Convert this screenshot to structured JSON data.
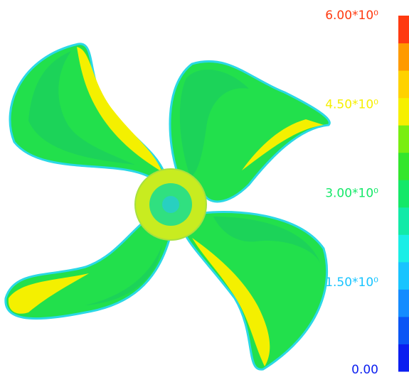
{
  "chart_data": {
    "type": "contour",
    "colorbar": {
      "zlim": [
        0,
        6
      ],
      "ticks": [
        {
          "value": 0,
          "label": "0.00"
        },
        {
          "value": 1.5,
          "label": "1.50*10⁰"
        },
        {
          "value": 3,
          "label": "3.00*10⁰"
        },
        {
          "value": 4.5,
          "label": "4.50*10⁰"
        },
        {
          "value": 6,
          "label": "6.00*10⁰"
        }
      ],
      "colors": [
        "#0b1ef0",
        "#0a55f5",
        "#148cff",
        "#18c4ff",
        "#1aeee6",
        "#12eaa8",
        "#14e868",
        "#34e62c",
        "#7aee10",
        "#f6f000",
        "#ffd200",
        "#ff9a00",
        "#ff3a10"
      ]
    }
  }
}
